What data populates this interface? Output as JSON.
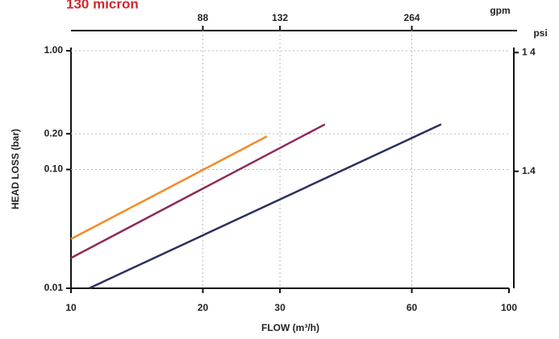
{
  "chart_data": {
    "type": "line",
    "title": "130 micron",
    "xlabel": "FLOW (m³/h)",
    "ylabel": "HEAD LOSS  (bar)",
    "x2label": "gpm",
    "y2label": "psi",
    "xscale": "log",
    "yscale": "log",
    "xlim": [
      10,
      100
    ],
    "xticks": [
      10,
      20,
      30,
      60,
      100
    ],
    "x2lim": [
      44,
      440
    ],
    "x2ticks": [
      88,
      132,
      264
    ],
    "ylim": [
      0.01,
      1
    ],
    "yticks": [
      {
        "value": 0.01,
        "label": "0.01"
      },
      {
        "value": 0.1,
        "label": "0.10"
      },
      {
        "value": 0.2,
        "label": "0.20"
      },
      {
        "value": 1,
        "label": "1.00"
      }
    ],
    "y2lim": [
      0.145,
      14.5
    ],
    "y2ticks": [
      {
        "value": 14,
        "label": "1 4"
      },
      1.4
    ],
    "grid": true,
    "series": [
      {
        "color": "#f28c28",
        "x": [
          10,
          28
        ],
        "values": [
          0.026,
          0.19
        ]
      },
      {
        "color": "#8e2858",
        "x": [
          10,
          38
        ],
        "values": [
          0.018,
          0.24
        ]
      },
      {
        "color": "#2b2f5e",
        "x": [
          11,
          70
        ],
        "values": [
          0.01,
          0.24
        ]
      }
    ]
  }
}
